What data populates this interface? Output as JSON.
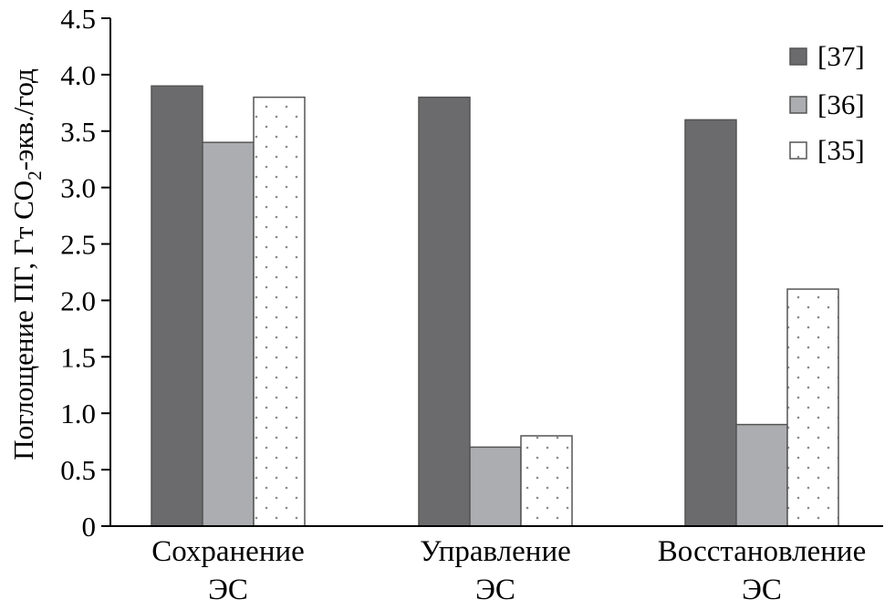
{
  "chart_data": {
    "type": "bar",
    "title": "",
    "ylabel": "Поглощение ПГ, Гт CO₂-экв./год",
    "ylabel_parts": [
      "Поглощение ПГ, Гт CO",
      "2",
      "-экв./год"
    ],
    "xlabel": "",
    "categories": [
      [
        "Сохранение",
        "ЭС"
      ],
      [
        "Управление",
        "ЭС"
      ],
      [
        "Восстановление",
        "ЭС"
      ]
    ],
    "ylim": [
      0,
      4.5
    ],
    "yticks": [
      "0",
      "0.5",
      "1.0",
      "1.5",
      "2.0",
      "2.5",
      "3.0",
      "3.5",
      "4.0",
      "4.5"
    ],
    "ytick_values": [
      0,
      0.5,
      1.0,
      1.5,
      2.0,
      2.5,
      3.0,
      3.5,
      4.0,
      4.5
    ],
    "grid": false,
    "legend_position": "top-right",
    "series": [
      {
        "name": "[37]",
        "values": [
          3.9,
          3.8,
          3.6
        ],
        "color": "#6b6b6d",
        "pattern": "solid"
      },
      {
        "name": "[36]",
        "values": [
          3.4,
          0.7,
          0.9
        ],
        "color": "#acadb0",
        "pattern": "solid"
      },
      {
        "name": "[35]",
        "values": [
          3.8,
          0.8,
          2.1
        ],
        "color": "#ffffff",
        "pattern": "dots"
      }
    ]
  }
}
